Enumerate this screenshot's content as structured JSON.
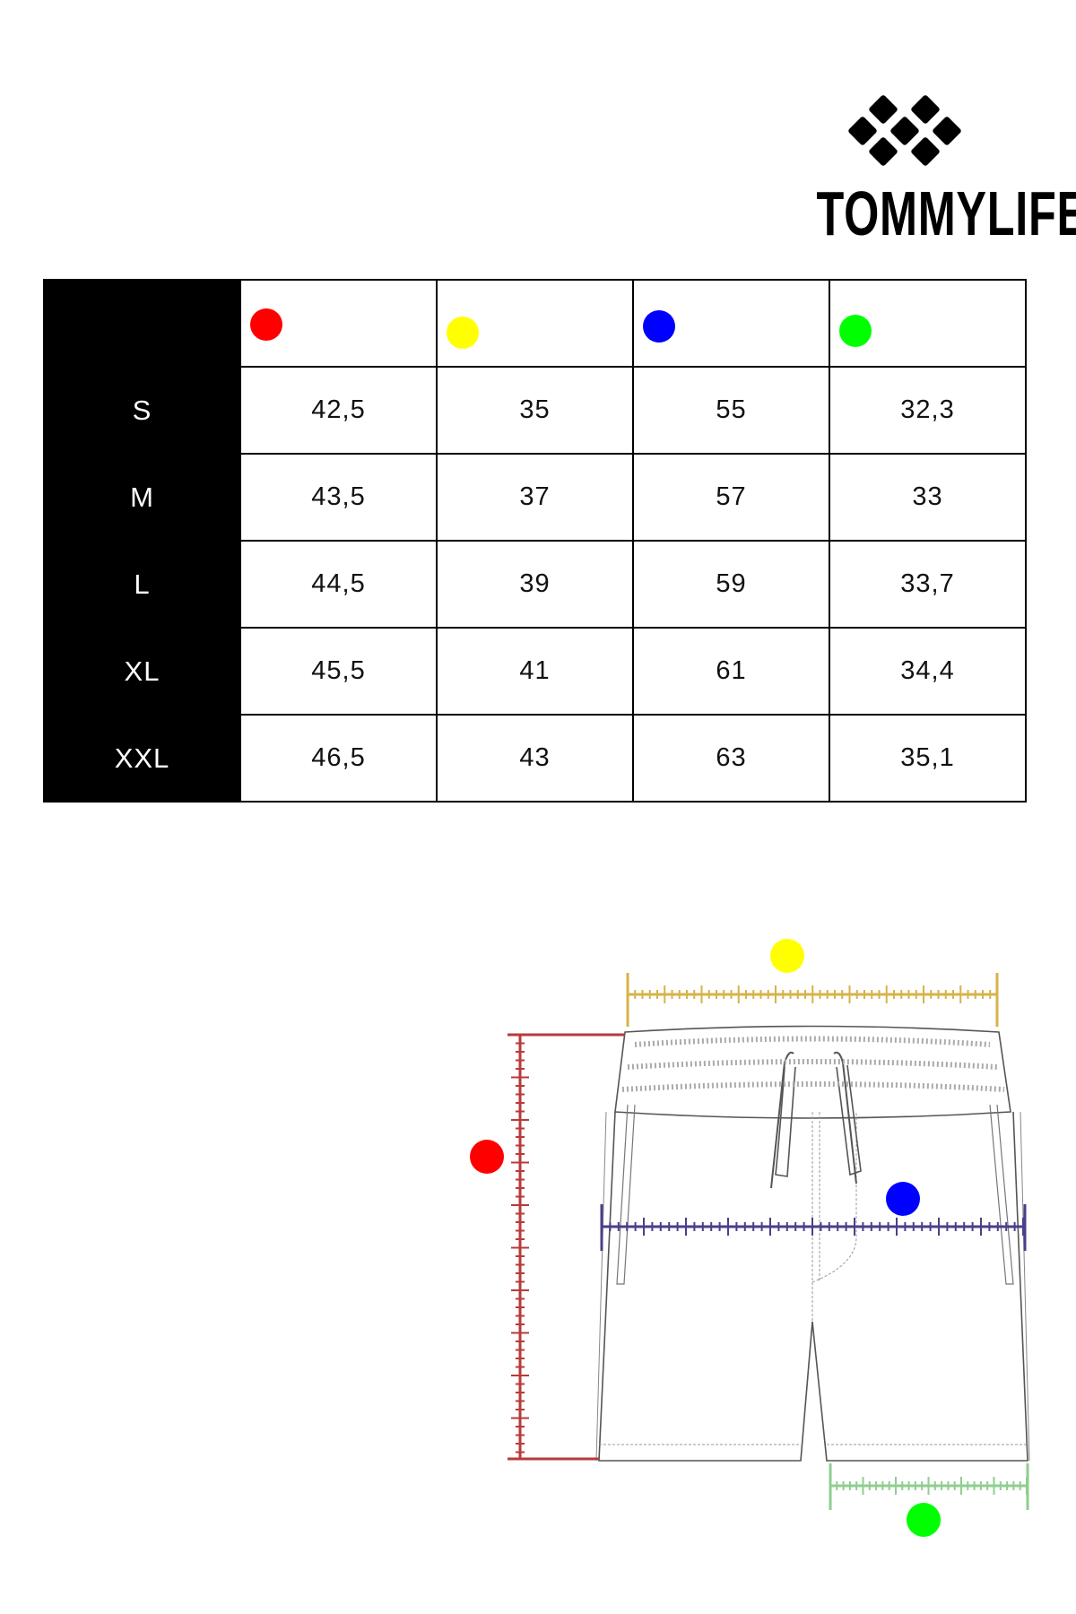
{
  "brand": {
    "name": "TOMMYLIFE"
  },
  "colors": {
    "red": "#ff0000",
    "yellow": "#ffff00",
    "blue": "#0000ff",
    "green": "#00ff00"
  },
  "table": {
    "columns": [
      {
        "marker": "red-dot",
        "color": "#ff0000"
      },
      {
        "marker": "yellow-dot",
        "color": "#ffff00"
      },
      {
        "marker": "blue-dot",
        "color": "#0000ff"
      },
      {
        "marker": "green-dot",
        "color": "#00ff00"
      }
    ],
    "rows": [
      {
        "size": "S",
        "values": [
          "42,5",
          "35",
          "55",
          "32,3"
        ]
      },
      {
        "size": "M",
        "values": [
          "43,5",
          "37",
          "57",
          "33"
        ]
      },
      {
        "size": "L",
        "values": [
          "44,5",
          "39",
          "59",
          "33,7"
        ]
      },
      {
        "size": "XL",
        "values": [
          "45,5",
          "41",
          "61",
          "34,4"
        ]
      },
      {
        "size": "XXL",
        "values": [
          "46,5",
          "43",
          "63",
          "35,1"
        ]
      }
    ]
  },
  "diagram": {
    "measurements": [
      {
        "name": "length",
        "color": "#ff0000",
        "line_color": "#b83a3a"
      },
      {
        "name": "waist",
        "color": "#ffff00",
        "line_color": "#d6b34a"
      },
      {
        "name": "hip",
        "color": "#0000ff",
        "line_color": "#4a3f8a"
      },
      {
        "name": "leg-opening",
        "color": "#00ff00",
        "line_color": "#8fce8f"
      }
    ]
  }
}
